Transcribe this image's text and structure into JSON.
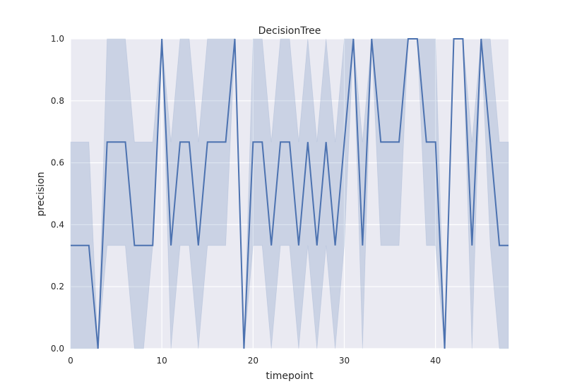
{
  "chart_data": {
    "type": "line",
    "title": "DecisionTree",
    "xlabel": "timepoint",
    "ylabel": "precision",
    "xlim": [
      0,
      48
    ],
    "ylim": [
      0.0,
      1.0
    ],
    "grid": true,
    "xticks": [
      0,
      10,
      20,
      30,
      40
    ],
    "yticks": [
      0.0,
      0.2,
      0.4,
      0.6,
      0.8,
      1.0
    ],
    "xtick_labels": [
      "0",
      "10",
      "20",
      "30",
      "40"
    ],
    "ytick_labels": [
      "0.0",
      "0.2",
      "0.4",
      "0.6",
      "0.8",
      "1.0"
    ],
    "colors": {
      "background": "#eaeaf2",
      "grid": "#ffffff",
      "line": "#4c72b0",
      "band": "#4c72b0"
    },
    "series": [
      {
        "x": [
          0,
          1,
          2,
          3,
          4,
          5,
          6,
          7,
          8,
          9,
          10,
          11,
          12,
          13,
          14,
          15,
          16,
          17,
          18,
          19,
          20,
          21,
          22,
          23,
          24,
          25,
          26,
          27,
          28,
          29,
          30,
          31,
          32,
          33,
          34,
          35,
          36,
          37,
          38,
          39,
          40,
          41,
          42,
          43,
          44,
          45,
          46,
          47,
          48
        ],
        "values": [
          0.333,
          0.333,
          0.333,
          0.0,
          0.667,
          0.667,
          0.667,
          0.333,
          0.333,
          0.333,
          1.0,
          0.333,
          0.667,
          0.667,
          0.333,
          0.667,
          0.667,
          0.667,
          1.0,
          0.0,
          0.667,
          0.667,
          0.333,
          0.667,
          0.667,
          0.333,
          0.667,
          0.333,
          0.667,
          0.333,
          0.667,
          1.0,
          0.333,
          1.0,
          0.667,
          0.667,
          0.667,
          1.0,
          1.0,
          0.667,
          0.667,
          0.0,
          1.0,
          1.0,
          0.333,
          1.0,
          0.667,
          0.333,
          0.333
        ],
        "ci_lower": [
          0.0,
          0.0,
          0.0,
          0.0,
          0.333,
          0.333,
          0.333,
          0.0,
          0.0,
          0.333,
          1.0,
          0.0,
          0.333,
          0.333,
          0.0,
          0.333,
          0.333,
          0.333,
          1.0,
          0.0,
          0.333,
          0.333,
          0.0,
          0.333,
          0.333,
          0.0,
          0.333,
          0.0,
          0.333,
          0.0,
          0.333,
          1.0,
          0.0,
          1.0,
          0.333,
          0.333,
          0.333,
          1.0,
          1.0,
          0.333,
          0.333,
          0.0,
          1.0,
          1.0,
          0.0,
          1.0,
          0.333,
          0.0,
          0.0
        ],
        "ci_upper": [
          0.667,
          0.667,
          0.667,
          0.0,
          1.0,
          1.0,
          1.0,
          0.667,
          0.667,
          0.667,
          1.0,
          0.667,
          1.0,
          1.0,
          0.667,
          1.0,
          1.0,
          1.0,
          1.0,
          0.0,
          1.0,
          1.0,
          0.667,
          1.0,
          1.0,
          0.667,
          1.0,
          0.667,
          1.0,
          0.667,
          1.0,
          1.0,
          0.667,
          1.0,
          1.0,
          1.0,
          1.0,
          1.0,
          1.0,
          1.0,
          1.0,
          0.0,
          1.0,
          1.0,
          0.667,
          1.0,
          1.0,
          0.667,
          0.667
        ]
      }
    ]
  }
}
